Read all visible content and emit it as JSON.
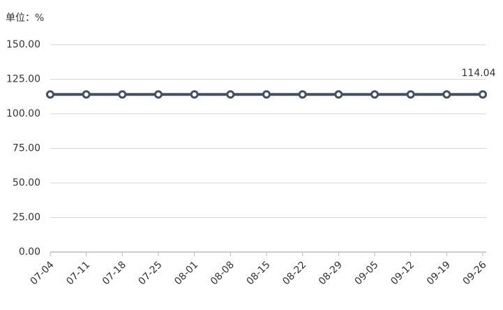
{
  "chart_data": {
    "type": "line",
    "unit_label": "单位：%",
    "categories": [
      "07-04",
      "07-11",
      "07-18",
      "07-25",
      "08-01",
      "08-08",
      "08-15",
      "08-22",
      "08-29",
      "09-05",
      "09-12",
      "09-19",
      "09-26"
    ],
    "values": [
      114.04,
      114.04,
      114.04,
      114.04,
      114.04,
      114.04,
      114.04,
      114.04,
      114.04,
      114.04,
      114.04,
      114.04,
      114.04
    ],
    "value_labels": [
      null,
      null,
      null,
      null,
      null,
      null,
      null,
      null,
      null,
      null,
      null,
      null,
      "114.04"
    ],
    "color": "#44505e",
    "ylim": [
      0,
      150
    ],
    "yticks": [
      {
        "value": 0,
        "label": "0.00"
      },
      {
        "value": 25,
        "label": "25.00"
      },
      {
        "value": 50,
        "label": "50.00"
      },
      {
        "value": 75,
        "label": "75.00"
      },
      {
        "value": 100,
        "label": "100.00"
      },
      {
        "value": 125,
        "label": "125.00"
      },
      {
        "value": 150,
        "label": "150.00"
      }
    ],
    "grid": true
  }
}
